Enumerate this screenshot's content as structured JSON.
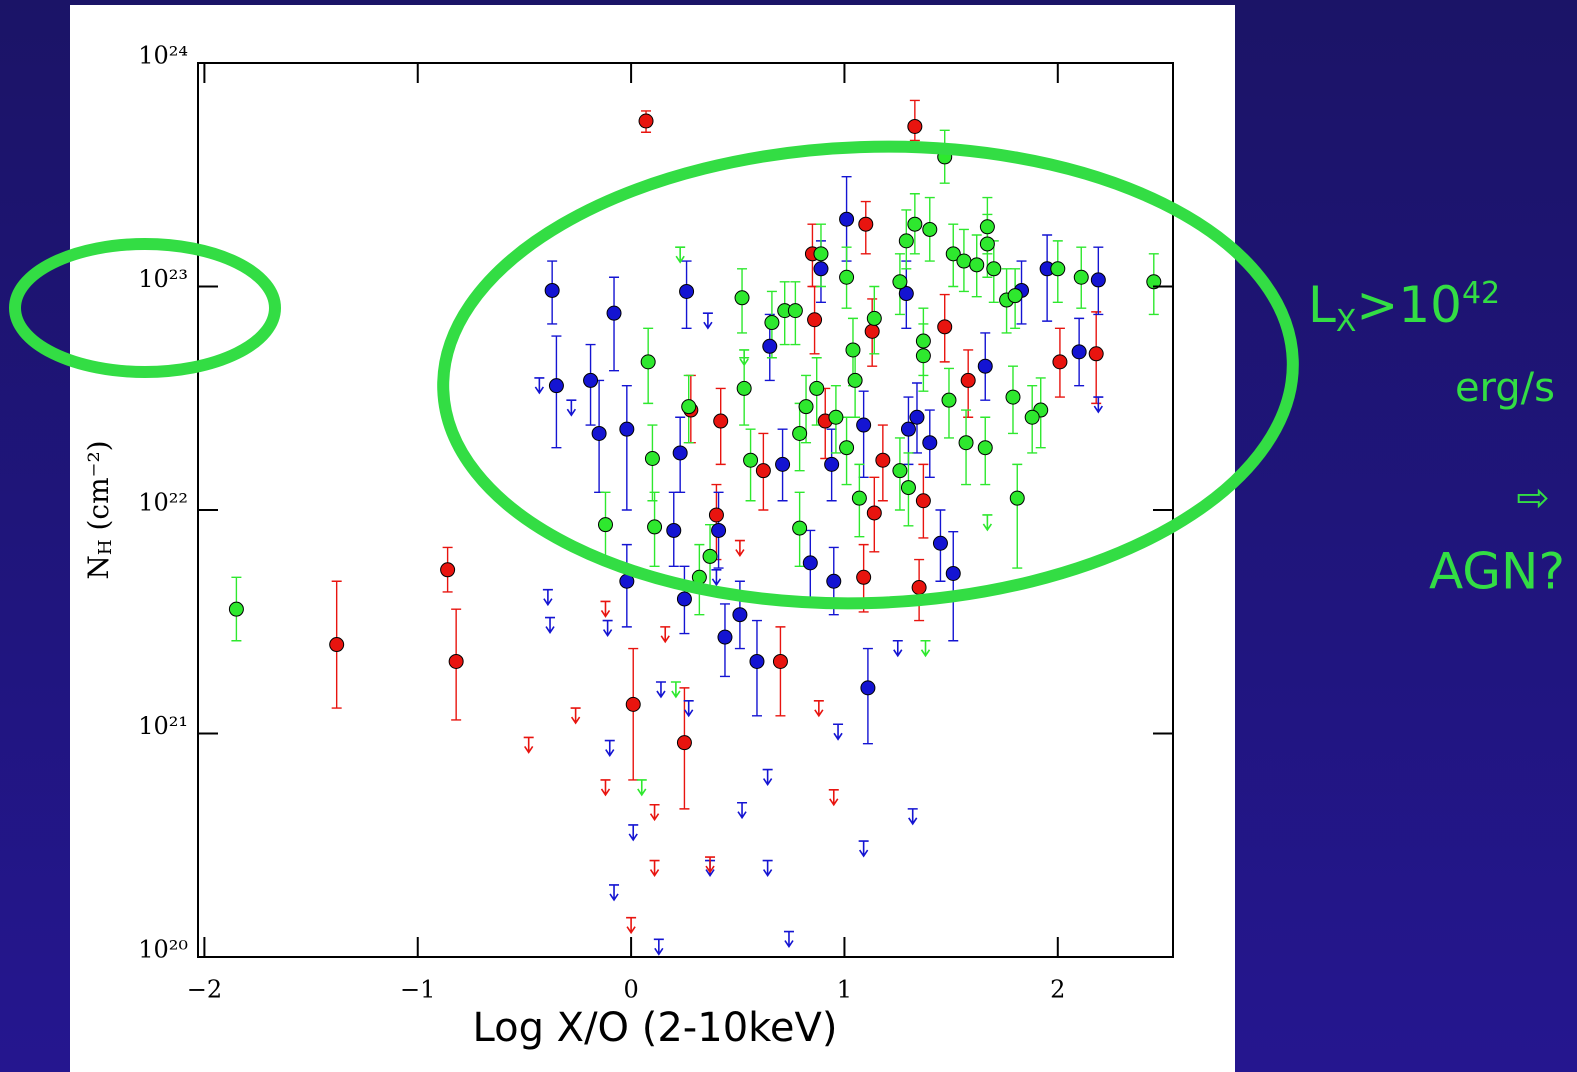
{
  "chart_data": {
    "type": "scatter",
    "x_label": "Log X/O (2-10keV)",
    "y_label": {
      "main": "N",
      "sub": "H",
      "rest": " (cm⁻²)"
    },
    "log_y": true,
    "xlim": [
      -2.03,
      2.54
    ],
    "ylim": [
      1e+20,
      1e+24
    ],
    "xticks": [
      {
        "value": -2,
        "label": "−2"
      },
      {
        "value": -1,
        "label": "−1"
      },
      0,
      1,
      2
    ],
    "yticks": [
      {
        "value": 1e+20,
        "label": "10²⁰"
      },
      {
        "value": 1e+21,
        "label": "10²¹"
      },
      {
        "value": 1e+22,
        "label": "10²²"
      },
      {
        "value": 1e+23,
        "label": "10²³"
      },
      {
        "value": 1e+24,
        "label": "10²⁴"
      }
    ],
    "annotation": {
      "l": "L",
      "sub": "X",
      "gt": ">10",
      "sup": "42",
      "unit": "erg/s",
      "arrow": "⇨",
      "agn": "AGN?"
    },
    "series": [
      {
        "kind": "detection",
        "color": "#e8140f",
        "x": [
          0.07,
          1.33,
          -0.86,
          -1.38,
          -0.82,
          0.01,
          0.25,
          0.7,
          1.1,
          0.85,
          0.86,
          1.13,
          1.47,
          2.18,
          2.01,
          1.58,
          0.28,
          0.42,
          0.91,
          1.18,
          0.62,
          1.37,
          1.14,
          0.4,
          1.09,
          1.35
        ],
        "values": [
          5.5e+23,
          5.2e+23,
          5.4e+21,
          2.5e+21,
          2.1e+21,
          1.35e+21,
          9.1e+20,
          2.1e+21,
          1.9e+23,
          1.4e+23,
          7.1e+22,
          6.3e+22,
          6.6e+22,
          5e+22,
          4.6e+22,
          3.8e+22,
          2.8e+22,
          2.5e+22,
          2.5e+22,
          1.67e+22,
          1.5e+22,
          1.1e+22,
          9.7e+21,
          9.5e+21,
          5e+21,
          4.5e+21
        ],
        "err_lo": [
          4.9e+23,
          4.5e+23,
          4.3e+21,
          1.3e+21,
          1.15e+21,
          6.2e+20,
          4.6e+20,
          1.2e+21,
          1.4e+23,
          1e+23,
          5e+22,
          4.4e+22,
          4.6e+22,
          3e+22,
          3.2e+22,
          2.6e+22,
          2e+22,
          1.6e+22,
          1.7e+22,
          1.1e+22,
          1e+22,
          7.5e+21,
          6.5e+21,
          6e+21,
          3.5e+21,
          3.2e+21
        ],
        "err_hi": [
          6.1e+23,
          6.8e+23,
          6.8e+21,
          4.8e+21,
          3.6e+21,
          2.4e+21,
          1.6e+21,
          3e+21,
          2.4e+23,
          1.9e+23,
          1e+23,
          8.8e+22,
          9.2e+22,
          7.7e+22,
          6.5e+22,
          5.2e+22,
          4e+22,
          3.5e+22,
          3.5e+22,
          2.4e+22,
          2.2e+22,
          1.6e+22,
          1.4e+22,
          1.3e+22,
          7e+21,
          6e+21
        ]
      },
      {
        "kind": "detection",
        "color": "#1414d2",
        "x": [
          -0.37,
          -0.08,
          0.26,
          -0.35,
          -0.19,
          -0.15,
          -0.02,
          1.01,
          0.89,
          1.29,
          1.83,
          1.95,
          2.19,
          2.1,
          0.65,
          1.66,
          0.23,
          1.09,
          1.34,
          1.3,
          1.4,
          0.94,
          0.41,
          0.2,
          -0.02,
          0.25,
          0.51,
          0.59,
          0.84,
          0.95,
          1.45,
          1.51,
          1.11,
          0.44,
          0.71
        ],
        "values": [
          9.6e+22,
          7.6e+22,
          9.5e+22,
          3.6e+22,
          3.8e+22,
          2.2e+22,
          2.3e+22,
          2e+23,
          1.2e+23,
          9.3e+22,
          9.6e+22,
          1.2e+23,
          1.07e+23,
          5.1e+22,
          5.4e+22,
          4.4e+22,
          1.8e+22,
          2.4e+22,
          2.6e+22,
          2.3e+22,
          2e+22,
          1.6e+22,
          8.1e+21,
          8.1e+21,
          4.8e+21,
          4e+21,
          3.4e+21,
          2.1e+21,
          5.8e+21,
          4.8e+21,
          7.1e+21,
          5.2e+21,
          1.6e+21,
          2.7e+21,
          1.6e+22
        ],
        "err_lo": [
          6.8e+22,
          4.2e+22,
          6.5e+22,
          1.9e+22,
          2.4e+22,
          1.2e+22,
          1e+22,
          1.3e+23,
          8.5e+22,
          6.5e+22,
          6.8e+22,
          7e+22,
          7.5e+22,
          3.6e+22,
          3.8e+22,
          3.1e+22,
          1.2e+22,
          1.4e+22,
          1.8e+22,
          1.6e+22,
          1.4e+22,
          1.1e+22,
          5.5e+21,
          5.6e+21,
          3e+21,
          2.8e+21,
          2.4e+21,
          1.2e+21,
          4e+21,
          3.4e+21,
          4.8e+21,
          2.6e+21,
          9e+20,
          1.8e+21,
          1.1e+22
        ],
        "err_hi": [
          1.3e+23,
          1.1e+23,
          1.3e+23,
          6e+22,
          5.5e+22,
          3.8e+22,
          3.6e+22,
          3.1e+23,
          1.6e+23,
          1.3e+23,
          1.3e+23,
          1.7e+23,
          1.5e+23,
          7.2e+22,
          7.5e+22,
          6.2e+22,
          2.6e+22,
          3.4e+22,
          3.7e+22,
          3.2e+22,
          2.8e+22,
          2.3e+22,
          1.2e+22,
          1.2e+22,
          7e+21,
          5.6e+21,
          4.8e+21,
          3.2e+21,
          8.1e+21,
          6.8e+21,
          1e+22,
          8e+21,
          2.4e+21,
          3.8e+21,
          2.3e+22
        ]
      },
      {
        "kind": "detection",
        "color": "#2ee82e",
        "x": [
          -1.85,
          1.47,
          1.33,
          1.4,
          1.29,
          1.67,
          0.89,
          1.51,
          1.56,
          1.67,
          1.62,
          1.7,
          1.01,
          2.0,
          2.11,
          2.45,
          1.26,
          0.52,
          1.76,
          1.8,
          0.72,
          0.77,
          0.66,
          1.14,
          1.37,
          1.04,
          0.08,
          1.37,
          0.53,
          0.87,
          1.05,
          1.49,
          1.79,
          0.27,
          0.82,
          0.96,
          1.92,
          1.88,
          0.79,
          0.1,
          0.56,
          1.57,
          1.66,
          1.26,
          1.01,
          1.3,
          1.07,
          1.81,
          -0.12,
          0.11,
          0.79,
          0.37,
          0.32
        ],
        "values": [
          3.6e+21,
          3.8e+23,
          1.9e+23,
          1.8e+23,
          1.6e+23,
          1.85e+23,
          1.4e+23,
          1.4e+23,
          1.3e+23,
          1.55e+23,
          1.25e+23,
          1.2e+23,
          1.1e+23,
          1.2e+23,
          1.1e+23,
          1.05e+23,
          1.05e+23,
          8.9e+22,
          8.7e+22,
          9.1e+22,
          7.8e+22,
          7.8e+22,
          6.9e+22,
          7.2e+22,
          5.7e+22,
          5.2e+22,
          4.6e+22,
          4.9e+22,
          3.5e+22,
          3.5e+22,
          3.8e+22,
          3.1e+22,
          3.2e+22,
          2.9e+22,
          2.9e+22,
          2.6e+22,
          2.8e+22,
          2.6e+22,
          2.2e+22,
          1.7e+22,
          1.67e+22,
          2e+22,
          1.9e+22,
          1.5e+22,
          1.9e+22,
          1.26e+22,
          1.13e+22,
          1.13e+22,
          8.6e+21,
          8.4e+21,
          8.3e+21,
          6.2e+21,
          5e+21
        ],
        "err_lo": [
          2.6e+21,
          2.9e+23,
          1.4e+23,
          1.3e+23,
          1.2e+23,
          1.4e+23,
          1e+23,
          1e+23,
          9.5e+22,
          1.1e+23,
          9e+22,
          8.5e+22,
          8e+22,
          8.5e+22,
          8e+22,
          7.5e+22,
          7.5e+22,
          6.2e+22,
          6.2e+22,
          6.5e+22,
          5.5e+22,
          5.5e+22,
          4.8e+22,
          5e+22,
          4e+22,
          3.6e+22,
          3e+22,
          3.4e+22,
          2.4e+22,
          2.4e+22,
          2.6e+22,
          2.1e+22,
          2.2e+22,
          2e+22,
          2e+22,
          1.8e+22,
          1.9e+22,
          1.8e+22,
          1.5e+22,
          1.1e+22,
          1.1e+22,
          1.3e+22,
          1.3e+22,
          1e+22,
          1.3e+22,
          8.5e+21,
          7.6e+21,
          5.5e+21,
          5.8e+21,
          5.6e+21,
          5.6e+21,
          4.2e+21,
          3.4e+21
        ],
        "err_hi": [
          5e+21,
          5e+23,
          2.6e+23,
          2.5e+23,
          2.2e+23,
          2.5e+23,
          1.9e+23,
          1.9e+23,
          1.8e+23,
          2.1e+23,
          1.7e+23,
          1.6e+23,
          1.5e+23,
          1.6e+23,
          1.5e+23,
          1.4e+23,
          1.4e+23,
          1.2e+23,
          1.2e+23,
          1.2e+23,
          1.05e+23,
          1.05e+23,
          9.5e+22,
          1e+23,
          8e+22,
          7.2e+22,
          6.5e+22,
          6.8e+22,
          4.8e+22,
          4.8e+22,
          5.2e+22,
          4.3e+22,
          4.4e+22,
          4e+22,
          4e+22,
          3.6e+22,
          3.9e+22,
          3.6e+22,
          3e+22,
          2.4e+22,
          2.3e+22,
          2.8e+22,
          2.6e+22,
          2.1e+22,
          2.6e+22,
          1.8e+22,
          1.6e+22,
          1.6e+22,
          1.2e+22,
          1.2e+22,
          1.2e+22,
          8.6e+21,
          7e+21
        ]
      },
      {
        "kind": "upper_limit",
        "color": "#1414d2",
        "x": [
          -0.39,
          -0.38,
          -0.43,
          -0.28,
          0.36,
          -0.11,
          -0.1,
          -0.08,
          0.01,
          0.13,
          0.14,
          0.27,
          0.37,
          0.52,
          0.64,
          0.74,
          0.97,
          1.09,
          1.32,
          1.25,
          0.4,
          0.64,
          2.19
        ],
        "values": [
          4.4e+21,
          3.3e+21,
          3.9e+22,
          3.1e+22,
          7.6e+22,
          3.2e+21,
          9.3e+20,
          2.1e+20,
          3.9e+20,
          1.2e+20,
          1.7e+21,
          1.4e+21,
          2.7e+20,
          4.9e+20,
          2.7e+20,
          1.3e+20,
          1.1e+21,
          3.3e+20,
          4.6e+20,
          2.6e+21,
          5.4e+21,
          6.9e+20,
          3.2e+22
        ]
      },
      {
        "kind": "upper_limit",
        "color": "#e8140f",
        "x": [
          -0.48,
          -0.26,
          -0.12,
          -0.12,
          0.0,
          0.11,
          0.11,
          0.16,
          0.37,
          0.95,
          0.51,
          0.88
        ],
        "values": [
          9.6e+20,
          1.3e+21,
          3.9e+21,
          6.2e+20,
          1.5e+20,
          4.8e+20,
          2.7e+20,
          3e+21,
          2.8e+20,
          5.6e+20,
          7.3e+21,
          1.4e+21
        ]
      },
      {
        "kind": "upper_limit",
        "color": "#2ee82e",
        "x": [
          0.23,
          0.05,
          0.21,
          1.38,
          1.67,
          0.53
        ],
        "values": [
          1.5e+23,
          6.2e+20,
          1.7e+21,
          2.6e+21,
          9.5e+21,
          5.2e+22
        ]
      }
    ]
  }
}
